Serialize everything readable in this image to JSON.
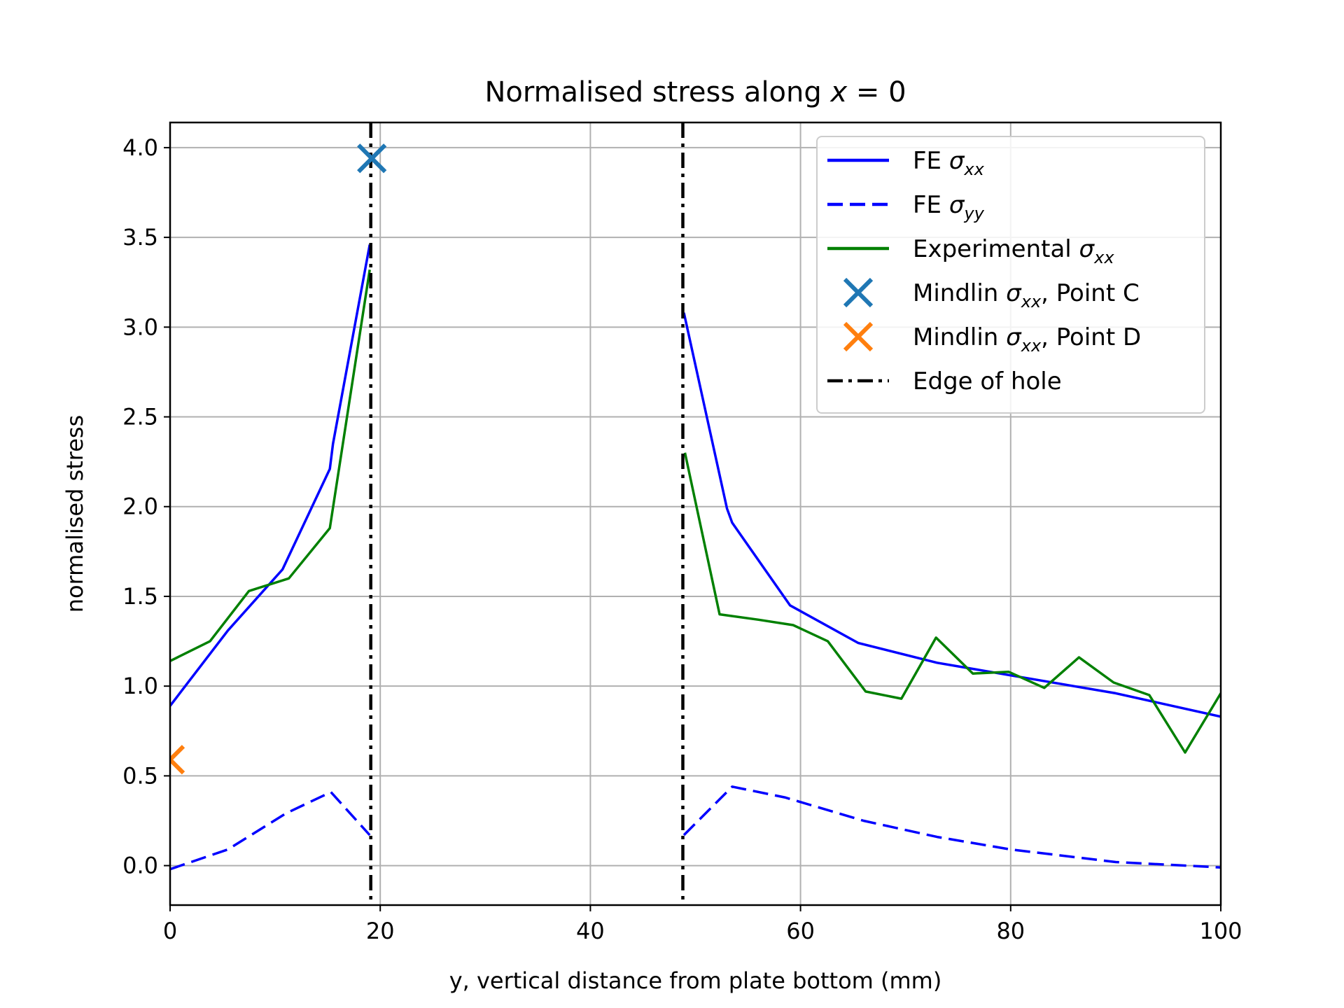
{
  "chart_data": {
    "type": "line",
    "title": "Normalised stress along x = 0",
    "title_parts": {
      "prefix": "Normalised stress along ",
      "var": "x",
      "rest": " = 0"
    },
    "xlabel": "y, vertical distance from plate bottom (mm)",
    "ylabel": "normalised stress",
    "xlim": [
      0,
      100
    ],
    "ylim": [
      -0.22,
      4.14
    ],
    "xticks": [
      0,
      20,
      40,
      60,
      80,
      100
    ],
    "yticks": [
      0.0,
      0.5,
      1.0,
      1.5,
      2.0,
      2.5,
      3.0,
      3.5,
      4.0
    ],
    "xtick_labels": [
      "0",
      "20",
      "40",
      "60",
      "80",
      "100"
    ],
    "ytick_labels": [
      "0.0",
      "0.5",
      "1.0",
      "1.5",
      "2.0",
      "2.5",
      "3.0",
      "3.5",
      "4.0"
    ],
    "grid": true,
    "legend_position": "top-right",
    "series": [
      {
        "name": "FE σxx",
        "legend": {
          "prefix": "FE ",
          "sym": "σ",
          "sub": "xx",
          "suffix": ""
        },
        "color": "#0000ff",
        "style": "solid",
        "segments": [
          [
            [
              0,
              0.89
            ],
            [
              5.5,
              1.31
            ],
            [
              10.7,
              1.65
            ],
            [
              15.2,
              2.21
            ],
            [
              15.5,
              2.35
            ],
            [
              19.0,
              3.46
            ]
          ],
          [
            [
              48.9,
              3.08
            ],
            [
              53.0,
              1.99
            ],
            [
              53.5,
              1.91
            ],
            [
              59.0,
              1.45
            ],
            [
              65.5,
              1.24
            ],
            [
              73.0,
              1.13
            ],
            [
              80.0,
              1.06
            ],
            [
              90.0,
              0.96
            ],
            [
              100,
              0.83
            ]
          ]
        ]
      },
      {
        "name": "FE σyy",
        "legend": {
          "prefix": "FE ",
          "sym": "σ",
          "sub": "yy",
          "suffix": ""
        },
        "color": "#0000ff",
        "style": "dashed",
        "segments": [
          [
            [
              0,
              -0.02
            ],
            [
              5.5,
              0.09
            ],
            [
              11.0,
              0.29
            ],
            [
              15.3,
              0.41
            ],
            [
              19.0,
              0.17
            ]
          ],
          [
            [
              48.9,
              0.17
            ],
            [
              53.5,
              0.44
            ],
            [
              58.5,
              0.38
            ],
            [
              66.0,
              0.25
            ],
            [
              73.0,
              0.16
            ],
            [
              80.0,
              0.09
            ],
            [
              90.0,
              0.02
            ],
            [
              100,
              -0.01
            ]
          ]
        ]
      },
      {
        "name": "Experimental σxx",
        "legend": {
          "prefix": "Experimental ",
          "sym": "σ",
          "sub": "xx",
          "suffix": ""
        },
        "color": "#008000",
        "style": "solid",
        "segments": [
          [
            [
              0,
              1.14
            ],
            [
              3.8,
              1.25
            ],
            [
              7.5,
              1.53
            ],
            [
              11.3,
              1.6
            ],
            [
              15.2,
              1.88
            ],
            [
              19.0,
              3.32
            ]
          ],
          [
            [
              49.0,
              2.3
            ],
            [
              52.3,
              1.4
            ],
            [
              56.0,
              1.37
            ],
            [
              59.3,
              1.34
            ],
            [
              62.6,
              1.25
            ],
            [
              66.2,
              0.97
            ],
            [
              69.6,
              0.93
            ],
            [
              72.9,
              1.27
            ],
            [
              76.4,
              1.07
            ],
            [
              79.8,
              1.08
            ],
            [
              83.2,
              0.99
            ],
            [
              86.5,
              1.16
            ],
            [
              89.8,
              1.02
            ],
            [
              93.2,
              0.95
            ],
            [
              96.6,
              0.63
            ],
            [
              100,
              0.96
            ]
          ]
        ]
      }
    ],
    "markers": [
      {
        "name": "Mindlin σxx, Point C",
        "legend": {
          "prefix": "Mindlin ",
          "sym": "σ",
          "sub": "xx",
          "suffix": ", Point C"
        },
        "color": "#1f77b4",
        "x": 19.2,
        "y": 3.94
      },
      {
        "name": "Mindlin σxx, Point D",
        "legend": {
          "prefix": "Mindlin ",
          "sym": "σ",
          "sub": "xx",
          "suffix": ", Point D"
        },
        "color": "#ff7f0e",
        "x": 0,
        "y": 0.59
      }
    ],
    "vlines": {
      "name": "Edge of hole",
      "color": "#000000",
      "style": "dashdot",
      "x": [
        19.1,
        48.8
      ]
    }
  }
}
